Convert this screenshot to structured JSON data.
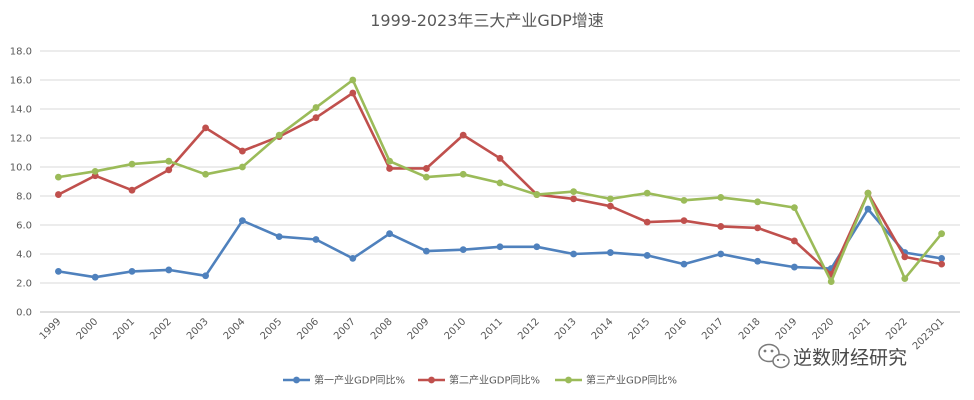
{
  "chart_data": {
    "type": "line",
    "title": "1999-2023年三大产业GDP增速",
    "xlabel": "",
    "ylabel": "",
    "categories": [
      "1999",
      "2000",
      "2001",
      "2002",
      "2003",
      "2004",
      "2005",
      "2006",
      "2007",
      "2008",
      "2009",
      "2010",
      "2011",
      "2012",
      "2013",
      "2014",
      "2015",
      "2016",
      "2017",
      "2018",
      "2019",
      "2020",
      "2021",
      "2022",
      "2023Q1"
    ],
    "ylim": [
      0,
      18
    ],
    "yticks": [
      "0.0",
      "2.0",
      "4.0",
      "6.0",
      "8.0",
      "10.0",
      "12.0",
      "14.0",
      "16.0",
      "18.0"
    ],
    "grid": true,
    "legend_position": "bottom",
    "series": [
      {
        "name": "第一产业GDP同比%",
        "color": "#4f81bd",
        "values": [
          2.8,
          2.4,
          2.8,
          2.9,
          2.5,
          6.3,
          5.2,
          5.0,
          3.7,
          5.4,
          4.2,
          4.3,
          4.5,
          4.5,
          4.0,
          4.1,
          3.9,
          3.3,
          4.0,
          3.5,
          3.1,
          3.0,
          7.1,
          4.1,
          3.7
        ]
      },
      {
        "name": "第二产业GDP同比%",
        "color": "#c0504d",
        "values": [
          8.1,
          9.4,
          8.4,
          9.8,
          12.7,
          11.1,
          12.1,
          13.4,
          15.1,
          9.9,
          9.9,
          12.2,
          10.6,
          8.1,
          7.8,
          7.3,
          6.2,
          6.3,
          5.9,
          5.8,
          4.9,
          2.6,
          8.2,
          3.8,
          3.3
        ]
      },
      {
        "name": "第三产业GDP同比%",
        "color": "#9bbb59",
        "values": [
          9.3,
          9.7,
          10.2,
          10.4,
          9.5,
          10.0,
          12.2,
          14.1,
          16.0,
          10.4,
          9.3,
          9.5,
          8.9,
          8.1,
          8.3,
          7.8,
          8.2,
          7.7,
          7.9,
          7.6,
          7.2,
          2.1,
          8.2,
          2.3,
          5.4
        ]
      }
    ]
  },
  "watermark": {
    "text": "逆数财经研究",
    "icon": "wechat-icon"
  }
}
